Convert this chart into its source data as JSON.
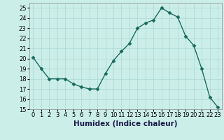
{
  "x": [
    0,
    1,
    2,
    3,
    4,
    5,
    6,
    7,
    8,
    9,
    10,
    11,
    12,
    13,
    14,
    15,
    16,
    17,
    18,
    19,
    20,
    21,
    22,
    23
  ],
  "y": [
    20.1,
    19.0,
    18.0,
    18.0,
    18.0,
    17.5,
    17.2,
    17.0,
    17.0,
    18.5,
    19.8,
    20.7,
    21.5,
    23.0,
    23.5,
    23.8,
    25.0,
    24.5,
    24.1,
    22.2,
    21.3,
    19.0,
    16.2,
    15.2
  ],
  "line_color": "#1a6b5e",
  "marker": "D",
  "marker_size": 2.5,
  "bg_color": "#cceee8",
  "grid_color": "#aad8d2",
  "xlabel": "Humidex (Indice chaleur)",
  "ylim": [
    15,
    25.5
  ],
  "yticks": [
    15,
    16,
    17,
    18,
    19,
    20,
    21,
    22,
    23,
    24,
    25
  ],
  "xtick_labels": [
    "0",
    "1",
    "2",
    "3",
    "4",
    "5",
    "6",
    "7",
    "8",
    "9",
    "10",
    "11",
    "12",
    "13",
    "14",
    "15",
    "16",
    "17",
    "18",
    "19",
    "20",
    "21",
    "22",
    "23"
  ],
  "tick_fontsize": 6,
  "xlabel_fontsize": 7.5
}
